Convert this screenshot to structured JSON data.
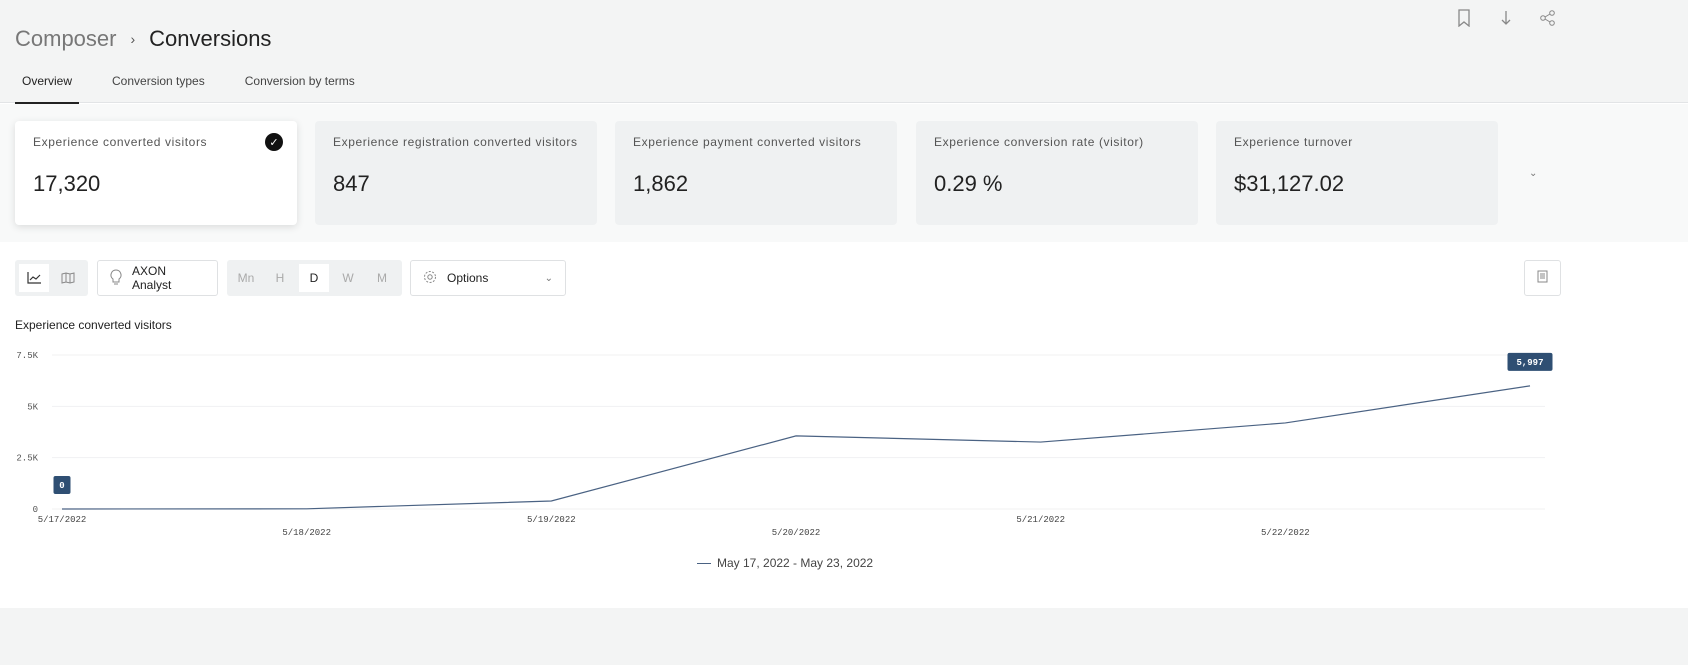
{
  "header": {
    "breadcrumb": [
      "Composer",
      "Conversions"
    ],
    "tabs": [
      "Overview",
      "Conversion types",
      "Conversion by terms"
    ],
    "active_tab": 0,
    "icons": [
      "bookmark-icon",
      "download-icon",
      "share-icon"
    ]
  },
  "kpis": [
    {
      "label": "Experience converted visitors",
      "value": "17,320",
      "selected": true
    },
    {
      "label": "Experience registration converted visitors",
      "value": "847"
    },
    {
      "label": "Experience payment converted visitors",
      "value": "1,862"
    },
    {
      "label": "Experience conversion rate (visitor)",
      "value": "0.29 %"
    },
    {
      "label": "Experience turnover",
      "value": "$31,127.02"
    }
  ],
  "toolbar": {
    "analyst": "AXON Analyst",
    "granularity": [
      "Mn",
      "H",
      "D",
      "W",
      "M"
    ],
    "selected_granularity": "D",
    "options": "Options"
  },
  "chart_data": {
    "type": "line",
    "title": "Experience converted visitors",
    "x": [
      "5/17/2022",
      "5/18/2022",
      "5/19/2022",
      "5/20/2022",
      "5/21/2022",
      "5/22/2022",
      "5/23/2022"
    ],
    "x_tick_labels": [
      "5/17/2022",
      "5/18/2022",
      "5/19/2022",
      "5/20/2022",
      "5/21/2022",
      "5/22/2022"
    ],
    "values": [
      0,
      10,
      390,
      3560,
      3260,
      4190,
      5997
    ],
    "y_ticks": [
      "0",
      "2.5K",
      "5K",
      "7.5K"
    ],
    "ylim": [
      0,
      7500
    ],
    "data_labels": {
      "first": "0",
      "last": "5,997"
    },
    "legend": "May 17, 2022 - May 23, 2022",
    "color": "#4a6283",
    "grid": true
  }
}
